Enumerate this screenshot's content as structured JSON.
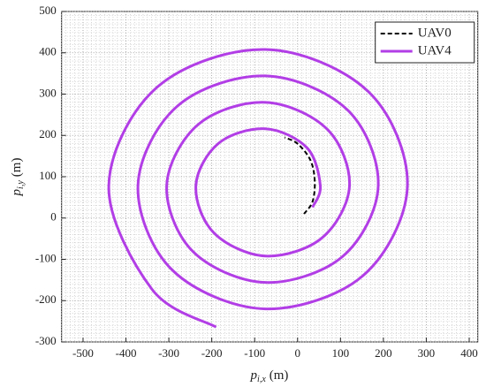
{
  "chart_data": {
    "type": "line",
    "xlabel": {
      "symbol": "p",
      "subscript": "i,x",
      "unit": "(m)"
    },
    "ylabel": {
      "symbol": "p",
      "subscript": "i,y",
      "unit": "(m)"
    },
    "xlim": [
      -550,
      420
    ],
    "ylim": [
      -300,
      500
    ],
    "xticks": [
      -500,
      -400,
      -300,
      -200,
      -100,
      0,
      100,
      200,
      300,
      400
    ],
    "yticks": [
      -300,
      -200,
      -100,
      0,
      100,
      200,
      300,
      400,
      500
    ],
    "grid": true,
    "minor_grid": true,
    "legend": "upper right",
    "series": [
      {
        "name": "UAV0",
        "color": "#000000",
        "dashed": true,
        "x": [
          15,
          35,
          40,
          30,
          0,
          -30
        ],
        "values": [
          10,
          40,
          90,
          140,
          180,
          195
        ]
      },
      {
        "name": "UAV4",
        "color": "#b23ee6",
        "dashed": false,
        "x": [
          35,
          53,
          22,
          -75,
          -184,
          -237,
          -195,
          -75,
          57,
          121,
          69,
          -75,
          -231,
          -305,
          -243,
          -75,
          105,
          188,
          117,
          -75,
          -279,
          -372,
          -291,
          -75,
          153,
          256,
          165,
          -75,
          -327,
          -440,
          -339,
          -190
        ],
        "values": [
          26,
          78,
          170,
          216,
          181,
          78,
          -36,
          -92,
          -48,
          78,
          215,
          280,
          227,
          78,
          -82,
          -156,
          -93,
          78,
          261,
          344,
          272,
          78,
          -127,
          -220,
          -139,
          78,
          306,
          408,
          317,
          78,
          -173,
          -264
        ]
      }
    ]
  }
}
